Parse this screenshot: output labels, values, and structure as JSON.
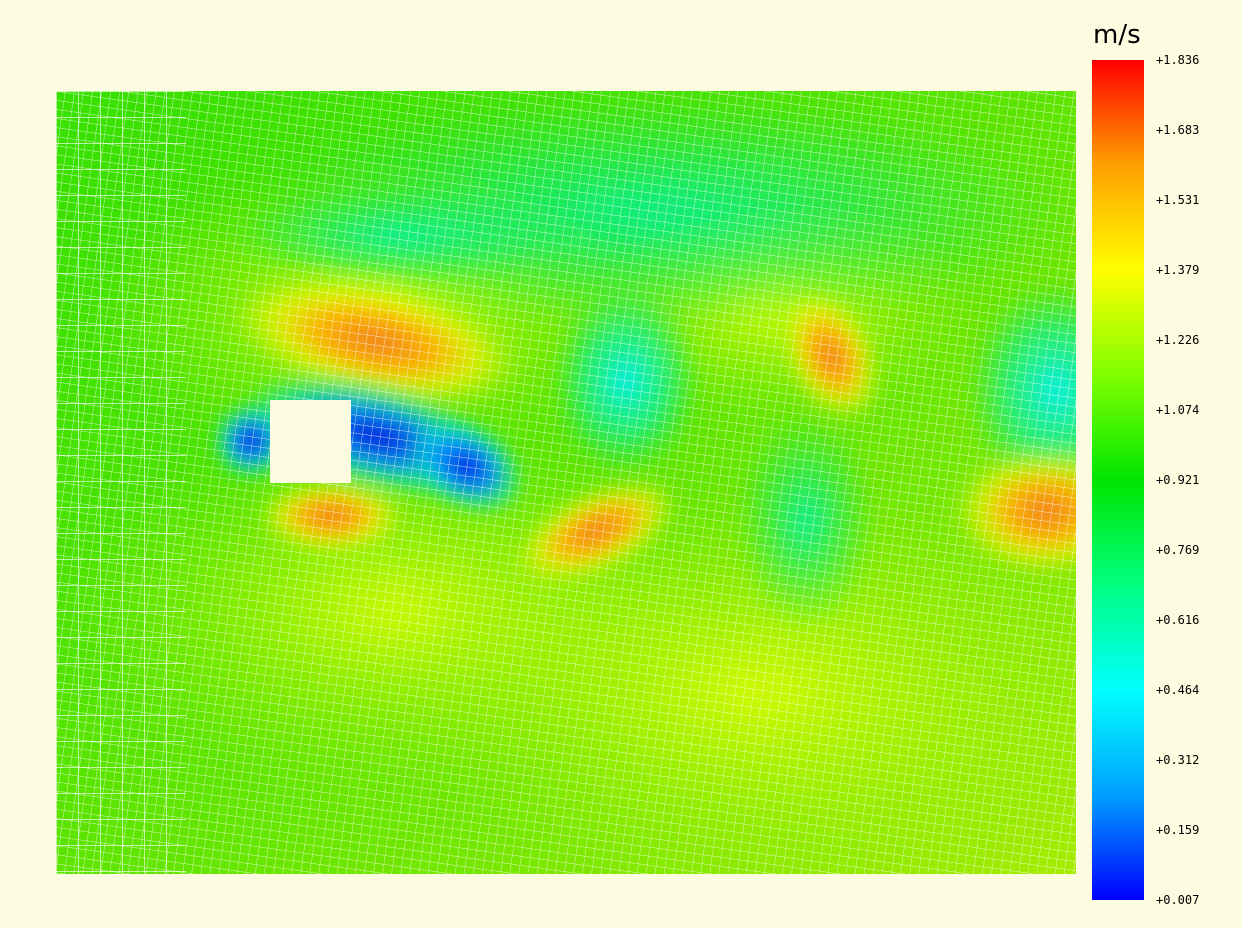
{
  "chart_data": {
    "type": "heatmap",
    "title": "",
    "xlabel": "",
    "ylabel": "",
    "colorbar": {
      "unit": "m/s",
      "min": 0.007,
      "max": 1.836,
      "ticks": [
        "+1.836",
        "+1.683",
        "+1.531",
        "+1.379",
        "+1.226",
        "+1.074",
        "+0.921",
        "+0.769",
        "+0.616",
        "+0.464",
        "+0.312",
        "+0.159",
        "+0.007"
      ],
      "colormap": [
        "#0000ff",
        "#00a0ff",
        "#00ffff",
        "#00ff80",
        "#00e600",
        "#80ff00",
        "#ffff00",
        "#ffa000",
        "#ff0000"
      ]
    },
    "field": {
      "background_velocity": 1.0,
      "obstacle": "square-cylinder",
      "features": [
        {
          "kind": "low",
          "cx": 0.21,
          "cy": 0.44,
          "value": 0.05
        },
        {
          "kind": "low",
          "cx": 0.25,
          "cy": 0.47,
          "value": 0.15
        },
        {
          "kind": "low",
          "cx": 0.39,
          "cy": 0.49,
          "value": 0.2
        },
        {
          "kind": "low",
          "cx": 0.57,
          "cy": 0.37,
          "value": 0.55
        },
        {
          "kind": "low",
          "cx": 0.73,
          "cy": 0.51,
          "value": 0.7
        },
        {
          "kind": "low",
          "cx": 0.98,
          "cy": 0.39,
          "value": 0.6
        },
        {
          "kind": "high",
          "cx": 0.33,
          "cy": 0.34,
          "value": 1.6
        },
        {
          "kind": "high",
          "cx": 0.26,
          "cy": 0.54,
          "value": 1.6
        },
        {
          "kind": "high",
          "cx": 0.53,
          "cy": 0.58,
          "value": 1.6
        },
        {
          "kind": "high",
          "cx": 0.77,
          "cy": 0.34,
          "value": 1.55
        },
        {
          "kind": "high",
          "cx": 0.97,
          "cy": 0.54,
          "value": 1.65
        }
      ]
    }
  }
}
